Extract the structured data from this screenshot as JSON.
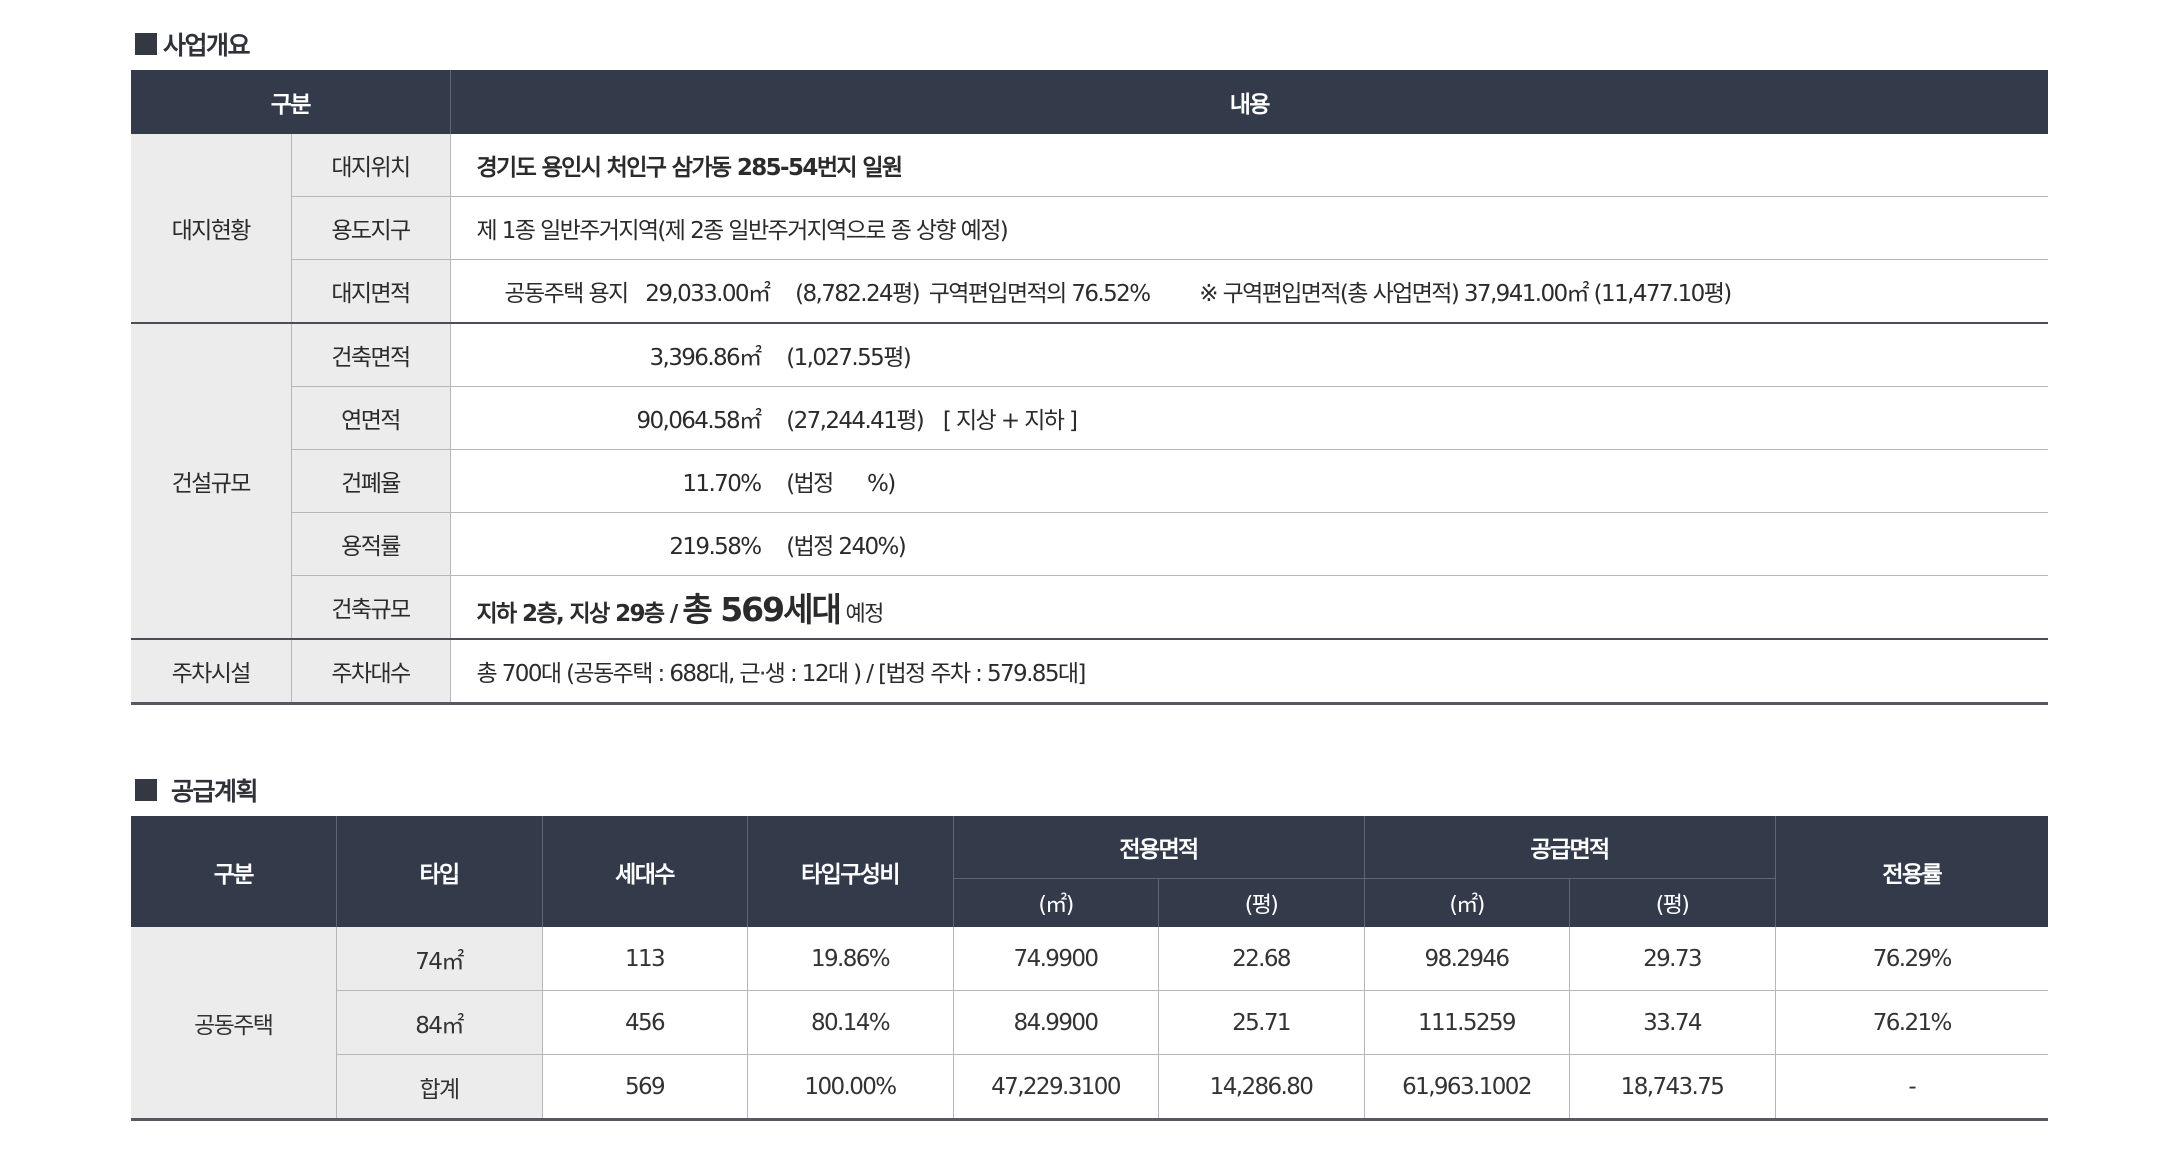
{
  "section1": {
    "title": "사업개요",
    "header": {
      "col1": "구분",
      "col2": "내용"
    },
    "site": {
      "category": "대지현황",
      "location_label": "대지위치",
      "location_value": "경기도 용인시 처인구 삼가동 285-54번지 일원",
      "zoning_label": "용도지구",
      "zoning_value": "제 1종 일반주거지역(제 2종 일반주거지역으로 종 상향 예정)",
      "area_label": "대지면적",
      "area_prefix": "공동주택 용지",
      "area_sqm": "29,033.00㎡",
      "area_pyeong": "(8,782.24평)",
      "area_ratio": "구역편입면적의 76.52%",
      "area_note": "※ 구역편입면적(총 사업면적) 37,941.00㎡ (11,477.10평)"
    },
    "construction": {
      "category": "건설규모",
      "building_area_label": "건축면적",
      "building_area_value": "3,396.86㎡",
      "building_area_pyeong": "(1,027.55평)",
      "gross_area_label": "연면적",
      "gross_area_value": "90,064.58㎡",
      "gross_area_pyeong": "(27,244.41평)",
      "gross_area_note": "[ 지상 + 지하 ]",
      "coverage_label": "건폐율",
      "coverage_value": "11.70%",
      "coverage_legal": "(법정      %)",
      "far_label": "용적률",
      "far_value": "219.58%",
      "far_legal": "(법정 240%)",
      "scale_label": "건축규모",
      "scale_value_a": "지하 2층, 지상 29층 /",
      "scale_value_b": "총 569세대",
      "scale_value_c": "예정"
    },
    "parking": {
      "category": "주차시설",
      "label": "주차대수",
      "value": "총 700대 (공동주택 : 688대, 근·생 : 12대 ) / [법정 주차 : 579.85대]"
    }
  },
  "section2": {
    "title": "공급계획",
    "headers": {
      "category": "구분",
      "type": "타입",
      "units": "세대수",
      "type_ratio": "타입구성비",
      "exclusive_area": "전용면적",
      "supply_area": "공급면적",
      "sqm": "(㎡)",
      "pyeong": "(평)",
      "exclusive_ratio": "전용률"
    },
    "category": "공동주택",
    "rows": [
      {
        "type": "74㎡",
        "units": "113",
        "ratio": "19.86%",
        "ex_sqm": "74.9900",
        "ex_py": "22.68",
        "sup_sqm": "98.2946",
        "sup_py": "29.73",
        "ex_rate": "76.29%"
      },
      {
        "type": "84㎡",
        "units": "456",
        "ratio": "80.14%",
        "ex_sqm": "84.9900",
        "ex_py": "25.71",
        "sup_sqm": "111.5259",
        "sup_py": "33.74",
        "ex_rate": "76.21%"
      },
      {
        "type": "합계",
        "units": "569",
        "ratio": "100.00%",
        "ex_sqm": "47,229.3100",
        "ex_py": "14,286.80",
        "sup_sqm": "61,963.1002",
        "sup_py": "18,743.75",
        "ex_rate": "-"
      }
    ]
  }
}
